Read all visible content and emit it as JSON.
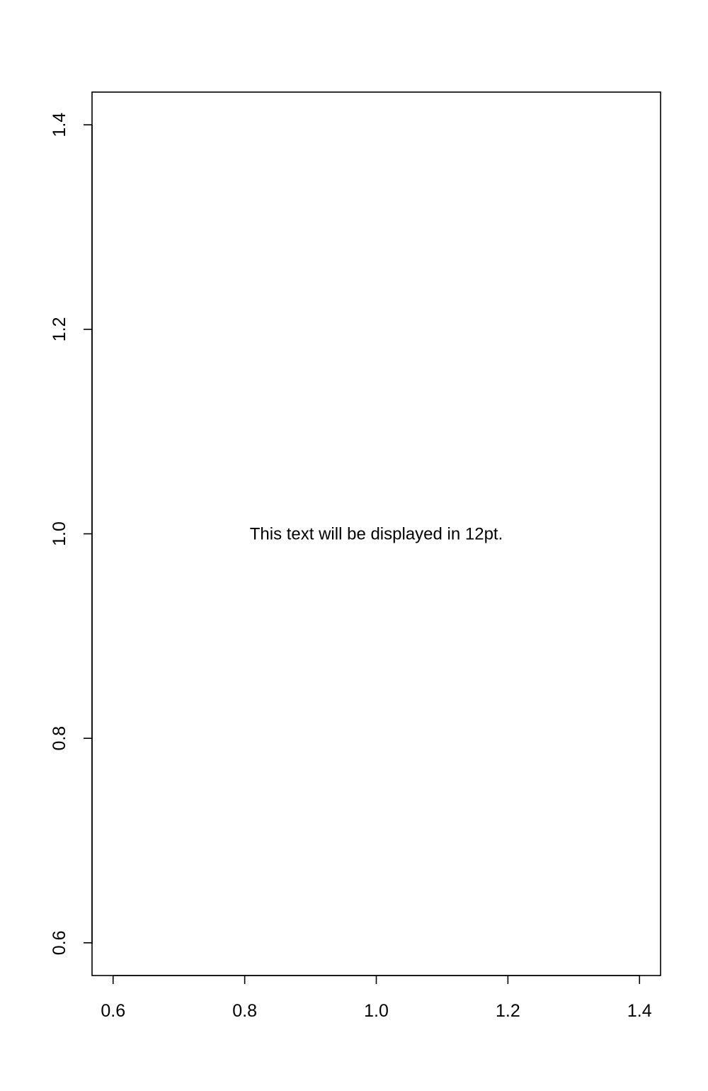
{
  "chart_data": {
    "type": "scatter",
    "title": "",
    "xlabel": "",
    "ylabel": "",
    "xlim": [
      0.568,
      1.432
    ],
    "ylim": [
      0.568,
      1.432
    ],
    "x_ticks": [
      "0.6",
      "0.8",
      "1.0",
      "1.2",
      "1.4"
    ],
    "y_ticks": [
      "0.6",
      "0.8",
      "1.0",
      "1.2",
      "1.4"
    ],
    "points": [],
    "grid": false,
    "box": true,
    "annotations": [
      {
        "x": 1.0,
        "y": 1.0,
        "text": "This text will be displayed in 12pt."
      }
    ],
    "colors": {
      "axis": "#000000",
      "background": "#ffffff"
    }
  }
}
